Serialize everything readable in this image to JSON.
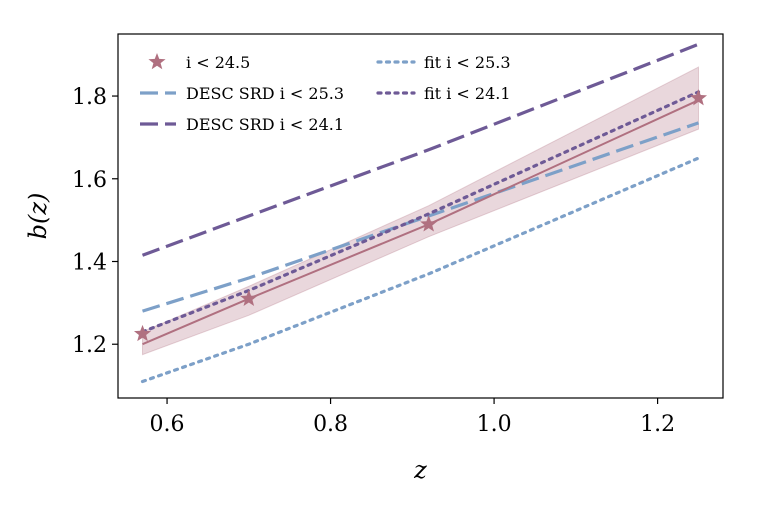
{
  "chart_data": {
    "type": "line",
    "title": "",
    "xlabel": "z",
    "ylabel": "b(z)",
    "xlim": [
      0.54,
      1.28
    ],
    "ylim": [
      1.07,
      1.95
    ],
    "xticks": [
      0.6,
      0.8,
      1.0,
      1.2
    ],
    "xtick_labels": [
      "0.6",
      "0.8",
      "1.0",
      "1.2"
    ],
    "yticks": [
      1.2,
      1.4,
      1.6,
      1.8
    ],
    "ytick_labels": [
      "1.2",
      "1.4",
      "1.6",
      "1.8"
    ],
    "grid": false,
    "legend_position": "top-left",
    "measured": {
      "name": "i < 24.5",
      "color": "#b07080",
      "band_color": "#b07080",
      "x": [
        0.57,
        0.7,
        0.92,
        1.25
      ],
      "y": [
        1.225,
        1.31,
        1.49,
        1.795
      ],
      "line_x": [
        0.57,
        0.7,
        0.92,
        1.25
      ],
      "line_y": [
        1.2,
        1.31,
        1.49,
        1.79
      ],
      "band_lower": [
        1.175,
        1.27,
        1.46,
        1.72
      ],
      "band_upper": [
        1.23,
        1.34,
        1.535,
        1.87
      ]
    },
    "series": [
      {
        "name": "DESC SRD i < 25.3",
        "style": "dashed",
        "color": "#7da0c8",
        "x": [
          0.57,
          0.7,
          0.92,
          1.25
        ],
        "y": [
          1.28,
          1.36,
          1.51,
          1.735
        ]
      },
      {
        "name": "DESC SRD i < 24.1",
        "style": "dashed",
        "color": "#6e5a96",
        "x": [
          0.57,
          0.7,
          0.92,
          1.25
        ],
        "y": [
          1.415,
          1.51,
          1.67,
          1.925
        ]
      },
      {
        "name": "fit i < 25.3",
        "style": "dotted",
        "color": "#7da0c8",
        "x": [
          0.57,
          0.7,
          0.92,
          1.25
        ],
        "y": [
          1.11,
          1.2,
          1.37,
          1.65
        ]
      },
      {
        "name": "fit i < 24.1",
        "style": "dotted",
        "color": "#6e5a96",
        "x": [
          0.57,
          0.7,
          0.92,
          1.25
        ],
        "y": [
          1.23,
          1.33,
          1.515,
          1.81
        ]
      }
    ],
    "legend": [
      {
        "label": "i < 24.5",
        "marker": "star",
        "color": "#b07080"
      },
      {
        "label": "DESC SRD i < 25.3",
        "style": "dashed",
        "color": "#7da0c8"
      },
      {
        "label": "DESC SRD i < 24.1",
        "style": "dashed",
        "color": "#6e5a96"
      },
      {
        "label": "fit i < 25.3",
        "style": "dotted",
        "color": "#7da0c8"
      },
      {
        "label": "fit i < 24.1",
        "style": "dotted",
        "color": "#6e5a96"
      }
    ]
  }
}
